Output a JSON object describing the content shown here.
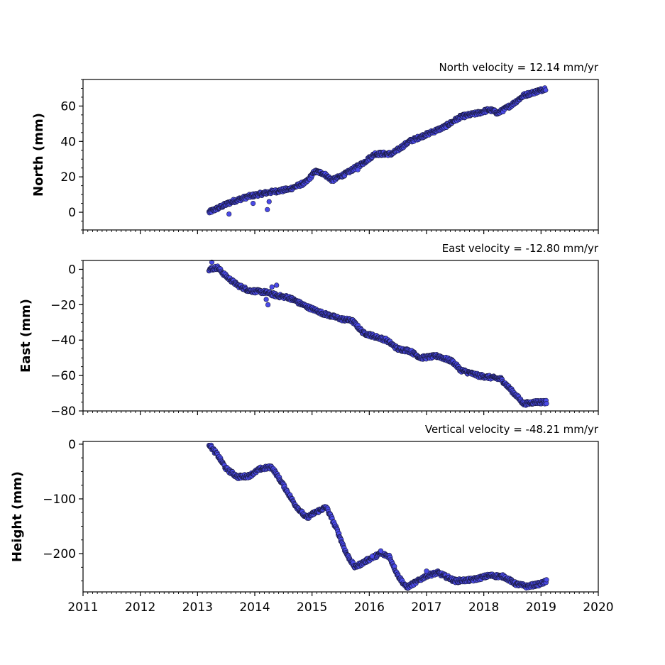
{
  "chart_data": [
    {
      "type": "scatter",
      "title": "North velocity = 12.14 mm/yr",
      "ylabel": "North (mm)",
      "xlim": [
        2011,
        2020
      ],
      "ylim": [
        -10,
        75
      ],
      "yticks": [
        0,
        20,
        40,
        60
      ],
      "yminor_step": 5,
      "xticks": [],
      "point_color": "#4a4ae8",
      "edge_color": "#1a1a40",
      "trend": [
        [
          2013.2,
          0
        ],
        [
          2013.6,
          6
        ],
        [
          2013.9,
          9
        ],
        [
          2014.2,
          11
        ],
        [
          2014.6,
          13
        ],
        [
          2014.9,
          17
        ],
        [
          2015.05,
          23
        ],
        [
          2015.2,
          22
        ],
        [
          2015.35,
          18
        ],
        [
          2015.6,
          22
        ],
        [
          2015.9,
          28
        ],
        [
          2016.1,
          33
        ],
        [
          2016.4,
          33
        ],
        [
          2016.7,
          40
        ],
        [
          2017.0,
          44
        ],
        [
          2017.3,
          48
        ],
        [
          2017.6,
          54
        ],
        [
          2017.9,
          56
        ],
        [
          2018.1,
          58
        ],
        [
          2018.25,
          56
        ],
        [
          2018.5,
          61
        ],
        [
          2018.7,
          66
        ],
        [
          2019.0,
          69
        ],
        [
          2019.08,
          70
        ]
      ],
      "outliers": [
        [
          2013.97,
          5
        ],
        [
          2014.22,
          1.5
        ],
        [
          2014.25,
          6
        ],
        [
          2013.55,
          -1
        ],
        [
          2015.8,
          24
        ]
      ]
    },
    {
      "type": "scatter",
      "title": "East velocity = -12.80 mm/yr",
      "ylabel": "East (mm)",
      "xlim": [
        2011,
        2020
      ],
      "ylim": [
        -80,
        5
      ],
      "yticks": [
        0,
        -20,
        -40,
        -60,
        -80
      ],
      "yticklabels": [
        "0",
        "−20",
        "−40",
        "−60",
        "−80"
      ],
      "yminor_step": 5,
      "xticks": [],
      "point_color": "#4a4ae8",
      "edge_color": "#1a1a40",
      "trend": [
        [
          2013.2,
          0
        ],
        [
          2013.35,
          1
        ],
        [
          2013.5,
          -4
        ],
        [
          2013.7,
          -9
        ],
        [
          2013.9,
          -12
        ],
        [
          2014.2,
          -13
        ],
        [
          2014.4,
          -15
        ],
        [
          2014.6,
          -16
        ],
        [
          2014.9,
          -21
        ],
        [
          2015.2,
          -25
        ],
        [
          2015.5,
          -28
        ],
        [
          2015.7,
          -29
        ],
        [
          2015.9,
          -36
        ],
        [
          2016.1,
          -38
        ],
        [
          2016.3,
          -40
        ],
        [
          2016.5,
          -45
        ],
        [
          2016.7,
          -46
        ],
        [
          2016.9,
          -50
        ],
        [
          2017.2,
          -49
        ],
        [
          2017.45,
          -52
        ],
        [
          2017.6,
          -57
        ],
        [
          2017.9,
          -60
        ],
        [
          2018.1,
          -61
        ],
        [
          2018.3,
          -62
        ],
        [
          2018.5,
          -69
        ],
        [
          2018.7,
          -76
        ],
        [
          2018.9,
          -75
        ],
        [
          2019.1,
          -75
        ]
      ],
      "outliers": [
        [
          2014.2,
          -17
        ],
        [
          2014.23,
          -20
        ],
        [
          2014.38,
          -9
        ],
        [
          2014.3,
          -10
        ],
        [
          2013.25,
          4
        ]
      ]
    },
    {
      "type": "scatter",
      "title": "Vertical velocity = -48.21 mm/yr",
      "ylabel": "Height (mm)",
      "xlim": [
        2011,
        2020
      ],
      "ylim": [
        -270,
        5
      ],
      "yticks": [
        0,
        -100,
        -200
      ],
      "yticklabels": [
        "0",
        "−100",
        "−200"
      ],
      "yminor_step": 25,
      "xticks": [
        2011,
        2012,
        2013,
        2014,
        2015,
        2016,
        2017,
        2018,
        2019,
        2020
      ],
      "xticklabels": [
        "2011",
        "2012",
        "2013",
        "2014",
        "2015",
        "2016",
        "2017",
        "2018",
        "2019",
        "2020"
      ],
      "point_color": "#4a4ae8",
      "edge_color": "#1a1a40",
      "trend": [
        [
          2013.2,
          0
        ],
        [
          2013.35,
          -20
        ],
        [
          2013.5,
          -45
        ],
        [
          2013.7,
          -60
        ],
        [
          2013.9,
          -58
        ],
        [
          2014.1,
          -45
        ],
        [
          2014.3,
          -42
        ],
        [
          2014.5,
          -75
        ],
        [
          2014.7,
          -110
        ],
        [
          2014.9,
          -135
        ],
        [
          2015.05,
          -125
        ],
        [
          2015.25,
          -115
        ],
        [
          2015.45,
          -160
        ],
        [
          2015.6,
          -200
        ],
        [
          2015.75,
          -225
        ],
        [
          2016.0,
          -210
        ],
        [
          2016.2,
          -200
        ],
        [
          2016.35,
          -205
        ],
        [
          2016.5,
          -240
        ],
        [
          2016.65,
          -262
        ],
        [
          2016.85,
          -250
        ],
        [
          2017.0,
          -240
        ],
        [
          2017.2,
          -235
        ],
        [
          2017.5,
          -250
        ],
        [
          2017.8,
          -248
        ],
        [
          2018.1,
          -240
        ],
        [
          2018.35,
          -242
        ],
        [
          2018.55,
          -255
        ],
        [
          2018.75,
          -260
        ],
        [
          2019.0,
          -255
        ],
        [
          2019.1,
          -250
        ]
      ],
      "outliers": [
        [
          2016.2,
          -195
        ],
        [
          2016.05,
          -205
        ],
        [
          2017.0,
          -232
        ]
      ]
    }
  ]
}
